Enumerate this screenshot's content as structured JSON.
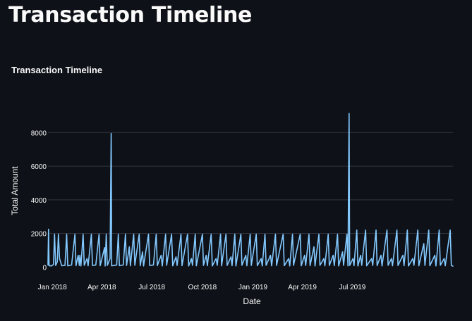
{
  "page": {
    "title": "Transaction Timeline"
  },
  "chart_data": {
    "type": "line",
    "title": "Transaction Timeline",
    "xlabel": "Date",
    "ylabel": "Total Amount",
    "x_range": [
      "2017-12-24",
      "2019-12-31"
    ],
    "ylim": [
      -450,
      9400
    ],
    "yticks": [
      0,
      2000,
      4000,
      6000,
      8000
    ],
    "xticks": [
      "2018-01-01",
      "2018-04-01",
      "2018-07-01",
      "2018-10-01",
      "2019-01-01",
      "2019-04-01",
      "2019-07-01"
    ],
    "xtick_labels": [
      "Jan 2018",
      "Apr 2018",
      "Jul 2018",
      "Oct 2018",
      "Jan 2019",
      "Apr 2019",
      "Jul 2019"
    ],
    "grid": true,
    "colors": {
      "background": "#0e1117",
      "line": "#83c9ff",
      "grid": "#31333f",
      "text": "#fafafa"
    },
    "series": [
      {
        "values_description_free": true,
        "points": [
          [
            "2017-12-24",
            120
          ],
          [
            "2017-12-25",
            2250
          ],
          [
            "2017-12-26",
            80
          ],
          [
            "2017-12-30",
            60
          ],
          [
            "2018-01-03",
            150
          ],
          [
            "2018-01-05",
            1950
          ],
          [
            "2018-01-07",
            90
          ],
          [
            "2018-01-10",
            300
          ],
          [
            "2018-01-12",
            1950
          ],
          [
            "2018-01-14",
            500
          ],
          [
            "2018-01-18",
            80
          ],
          [
            "2018-01-24",
            100
          ],
          [
            "2018-01-27",
            1950
          ],
          [
            "2018-01-29",
            70
          ],
          [
            "2018-02-05",
            120
          ],
          [
            "2018-02-11",
            1950
          ],
          [
            "2018-02-13",
            80
          ],
          [
            "2018-02-17",
            700
          ],
          [
            "2018-02-19",
            90
          ],
          [
            "2018-02-20",
            700
          ],
          [
            "2018-02-22",
            60
          ],
          [
            "2018-02-26",
            1950
          ],
          [
            "2018-02-28",
            100
          ],
          [
            "2018-03-05",
            500
          ],
          [
            "2018-03-07",
            70
          ],
          [
            "2018-03-13",
            1950
          ],
          [
            "2018-03-15",
            90
          ],
          [
            "2018-03-21",
            120
          ],
          [
            "2018-03-27",
            1950
          ],
          [
            "2018-03-29",
            80
          ],
          [
            "2018-04-06",
            1150
          ],
          [
            "2018-04-07",
            60
          ],
          [
            "2018-04-09",
            1950
          ],
          [
            "2018-04-11",
            100
          ],
          [
            "2018-04-16",
            500
          ],
          [
            "2018-04-18",
            7950
          ],
          [
            "2018-04-19",
            70
          ],
          [
            "2018-04-28",
            120
          ],
          [
            "2018-05-01",
            1950
          ],
          [
            "2018-05-03",
            80
          ],
          [
            "2018-05-10",
            120
          ],
          [
            "2018-05-14",
            1950
          ],
          [
            "2018-05-16",
            90
          ],
          [
            "2018-05-21",
            1200
          ],
          [
            "2018-05-23",
            70
          ],
          [
            "2018-05-29",
            1950
          ],
          [
            "2018-05-31",
            100
          ],
          [
            "2018-06-08",
            1950
          ],
          [
            "2018-06-10",
            80
          ],
          [
            "2018-06-14",
            900
          ],
          [
            "2018-06-16",
            60
          ],
          [
            "2018-06-25",
            1950
          ],
          [
            "2018-06-27",
            90
          ],
          [
            "2018-07-04",
            120
          ],
          [
            "2018-07-09",
            1950
          ],
          [
            "2018-07-11",
            80
          ],
          [
            "2018-07-18",
            700
          ],
          [
            "2018-07-20",
            60
          ],
          [
            "2018-07-26",
            1950
          ],
          [
            "2018-07-28",
            100
          ],
          [
            "2018-08-06",
            1950
          ],
          [
            "2018-08-08",
            70
          ],
          [
            "2018-08-14",
            600
          ],
          [
            "2018-08-16",
            90
          ],
          [
            "2018-08-23",
            1950
          ],
          [
            "2018-08-25",
            80
          ],
          [
            "2018-09-04",
            1950
          ],
          [
            "2018-09-06",
            60
          ],
          [
            "2018-09-11",
            500
          ],
          [
            "2018-09-13",
            100
          ],
          [
            "2018-09-18",
            1950
          ],
          [
            "2018-09-20",
            70
          ],
          [
            "2018-10-01",
            1950
          ],
          [
            "2018-10-03",
            90
          ],
          [
            "2018-10-08",
            700
          ],
          [
            "2018-10-10",
            80
          ],
          [
            "2018-10-17",
            1950
          ],
          [
            "2018-10-19",
            60
          ],
          [
            "2018-10-26",
            500
          ],
          [
            "2018-10-28",
            100
          ],
          [
            "2018-11-03",
            1950
          ],
          [
            "2018-11-05",
            70
          ],
          [
            "2018-11-13",
            1950
          ],
          [
            "2018-11-15",
            90
          ],
          [
            "2018-11-22",
            600
          ],
          [
            "2018-11-24",
            80
          ],
          [
            "2018-11-29",
            1950
          ],
          [
            "2018-12-01",
            60
          ],
          [
            "2018-12-10",
            1950
          ],
          [
            "2018-12-12",
            100
          ],
          [
            "2018-12-19",
            700
          ],
          [
            "2018-12-21",
            70
          ],
          [
            "2018-12-27",
            1950
          ],
          [
            "2018-12-29",
            90
          ],
          [
            "2019-01-07",
            1950
          ],
          [
            "2019-01-09",
            80
          ],
          [
            "2019-01-16",
            500
          ],
          [
            "2019-01-18",
            60
          ],
          [
            "2019-01-23",
            1950
          ],
          [
            "2019-01-25",
            100
          ],
          [
            "2019-02-02",
            700
          ],
          [
            "2019-02-04",
            70
          ],
          [
            "2019-02-11",
            1950
          ],
          [
            "2019-02-13",
            90
          ],
          [
            "2019-02-25",
            1950
          ],
          [
            "2019-02-27",
            80
          ],
          [
            "2019-03-07",
            500
          ],
          [
            "2019-03-09",
            60
          ],
          [
            "2019-03-14",
            1950
          ],
          [
            "2019-03-16",
            100
          ],
          [
            "2019-03-28",
            1950
          ],
          [
            "2019-03-30",
            70
          ],
          [
            "2019-04-05",
            700
          ],
          [
            "2019-04-07",
            90
          ],
          [
            "2019-04-13",
            1950
          ],
          [
            "2019-04-15",
            80
          ],
          [
            "2019-04-22",
            1200
          ],
          [
            "2019-04-24",
            60
          ],
          [
            "2019-05-01",
            1950
          ],
          [
            "2019-05-03",
            100
          ],
          [
            "2019-05-10",
            500
          ],
          [
            "2019-05-12",
            70
          ],
          [
            "2019-05-18",
            1950
          ],
          [
            "2019-05-20",
            90
          ],
          [
            "2019-05-27",
            700
          ],
          [
            "2019-05-29",
            80
          ],
          [
            "2019-06-04",
            1950
          ],
          [
            "2019-06-06",
            60
          ],
          [
            "2019-06-13",
            900
          ],
          [
            "2019-06-15",
            100
          ],
          [
            "2019-06-21",
            1950
          ],
          [
            "2019-06-23",
            70
          ],
          [
            "2019-06-25",
            9150
          ],
          [
            "2019-06-26",
            90
          ],
          [
            "2019-07-02",
            500
          ],
          [
            "2019-07-04",
            80
          ],
          [
            "2019-07-09",
            2200
          ],
          [
            "2019-07-11",
            60
          ],
          [
            "2019-07-16",
            700
          ],
          [
            "2019-07-18",
            100
          ],
          [
            "2019-07-25",
            2200
          ],
          [
            "2019-07-27",
            70
          ],
          [
            "2019-08-05",
            500
          ],
          [
            "2019-08-07",
            90
          ],
          [
            "2019-08-13",
            2200
          ],
          [
            "2019-08-15",
            80
          ],
          [
            "2019-08-22",
            700
          ],
          [
            "2019-08-24",
            60
          ],
          [
            "2019-09-02",
            2200
          ],
          [
            "2019-09-04",
            100
          ],
          [
            "2019-09-10",
            500
          ],
          [
            "2019-09-12",
            70
          ],
          [
            "2019-09-20",
            2200
          ],
          [
            "2019-09-22",
            90
          ],
          [
            "2019-10-01",
            700
          ],
          [
            "2019-10-03",
            80
          ],
          [
            "2019-10-09",
            2200
          ],
          [
            "2019-10-11",
            60
          ],
          [
            "2019-10-19",
            500
          ],
          [
            "2019-10-21",
            100
          ],
          [
            "2019-10-28",
            2200
          ],
          [
            "2019-10-30",
            70
          ],
          [
            "2019-11-08",
            1400
          ],
          [
            "2019-11-10",
            90
          ],
          [
            "2019-11-17",
            2200
          ],
          [
            "2019-11-19",
            80
          ],
          [
            "2019-11-28",
            700
          ],
          [
            "2019-11-30",
            60
          ],
          [
            "2019-12-06",
            2200
          ],
          [
            "2019-12-08",
            100
          ],
          [
            "2019-12-15",
            500
          ],
          [
            "2019-12-17",
            70
          ],
          [
            "2019-12-26",
            2200
          ],
          [
            "2019-12-28",
            90
          ],
          [
            "2019-12-31",
            50
          ]
        ]
      }
    ]
  }
}
